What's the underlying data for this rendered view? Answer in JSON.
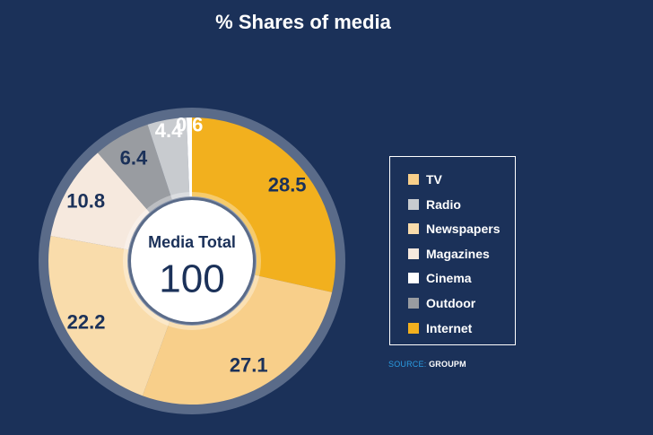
{
  "chart_data": {
    "type": "pie",
    "title": "% Shares of media",
    "center_label": "Media Total",
    "center_value": "100",
    "slices": [
      {
        "name": "Internet",
        "value": 28.5,
        "label": "28.5",
        "color": "#f2b01e"
      },
      {
        "name": "TV",
        "value": 27.1,
        "label": "27.1",
        "color": "#f8cf8a"
      },
      {
        "name": "Newspapers",
        "value": 22.2,
        "label": "22.2",
        "color": "#f9dcab"
      },
      {
        "name": "Magazines",
        "value": 10.8,
        "label": "10.8",
        "color": "#f6e9de"
      },
      {
        "name": "Outdoor",
        "value": 6.4,
        "label": "6.4",
        "color": "#999ca1"
      },
      {
        "name": "Radio",
        "value": 4.4,
        "label": "4.4",
        "color": "#c8cbcf"
      },
      {
        "name": "Cinema",
        "value": 0.6,
        "label": "0.6",
        "color": "#ffffff"
      }
    ],
    "legend_order": [
      "TV",
      "Radio",
      "Newspapers",
      "Magazines",
      "Cinema",
      "Outdoor",
      "Internet"
    ],
    "legend_position": "right"
  },
  "source": {
    "label": "SOURCE:",
    "value": "GROUPM"
  }
}
